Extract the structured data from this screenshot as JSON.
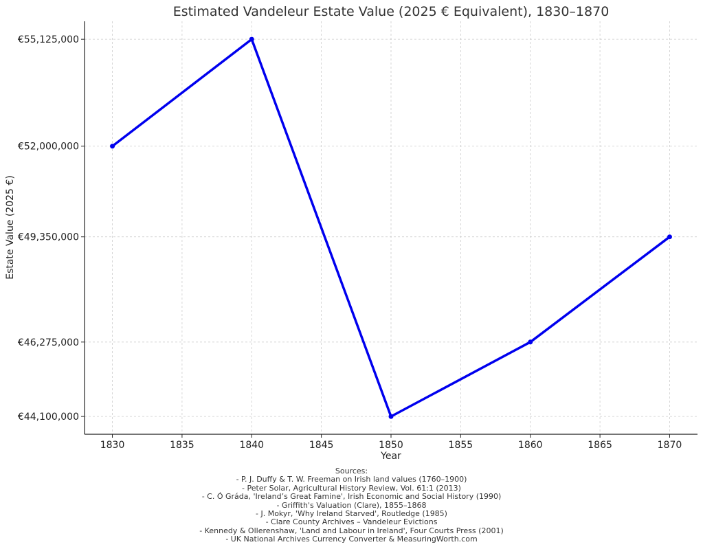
{
  "chart_data": {
    "type": "line",
    "title": "Estimated Vandeleur Estate Value (2025 € Equivalent), 1830–1870",
    "xlabel": "Year",
    "ylabel": "Estate Value (2025 €)",
    "x": [
      1830,
      1840,
      1850,
      1860,
      1870
    ],
    "series": [
      {
        "values": [
          52000000,
          55125000,
          44100000,
          46275000,
          49350000
        ],
        "color": "#0000ee"
      }
    ],
    "xticks": [
      1830,
      1835,
      1840,
      1845,
      1850,
      1855,
      1860,
      1865,
      1870
    ],
    "yticks": [
      44100000,
      46275000,
      49350000,
      52000000,
      55125000
    ],
    "ytick_labels": [
      "€44,100,000",
      "€46,275,000",
      "€49,350,000",
      "€52,000,000",
      "€55,125,000"
    ],
    "xlim": [
      1828,
      1872
    ],
    "ylim": [
      43580000,
      55650000
    ],
    "grid": true
  },
  "sources": {
    "heading": "Sources:",
    "items": [
      "- P. J. Duffy & T. W. Freeman on Irish land values (1760–1900)",
      "- Peter Solar, Agricultural History Review, Vol. 61:1 (2013)",
      "- C. Ó Gráda, 'Ireland’s Great Famine', Irish Economic and Social History (1990)",
      "- Griffith's Valuation (Clare), 1855–1868",
      "- J. Mokyr, 'Why Ireland Starved', Routledge (1985)",
      "- Clare County Archives – Vandeleur Evictions",
      "- Kennedy & Ollerenshaw, 'Land and Labour in Ireland', Four Courts Press (2001)",
      "- UK National Archives Currency Converter & MeasuringWorth.com"
    ]
  }
}
